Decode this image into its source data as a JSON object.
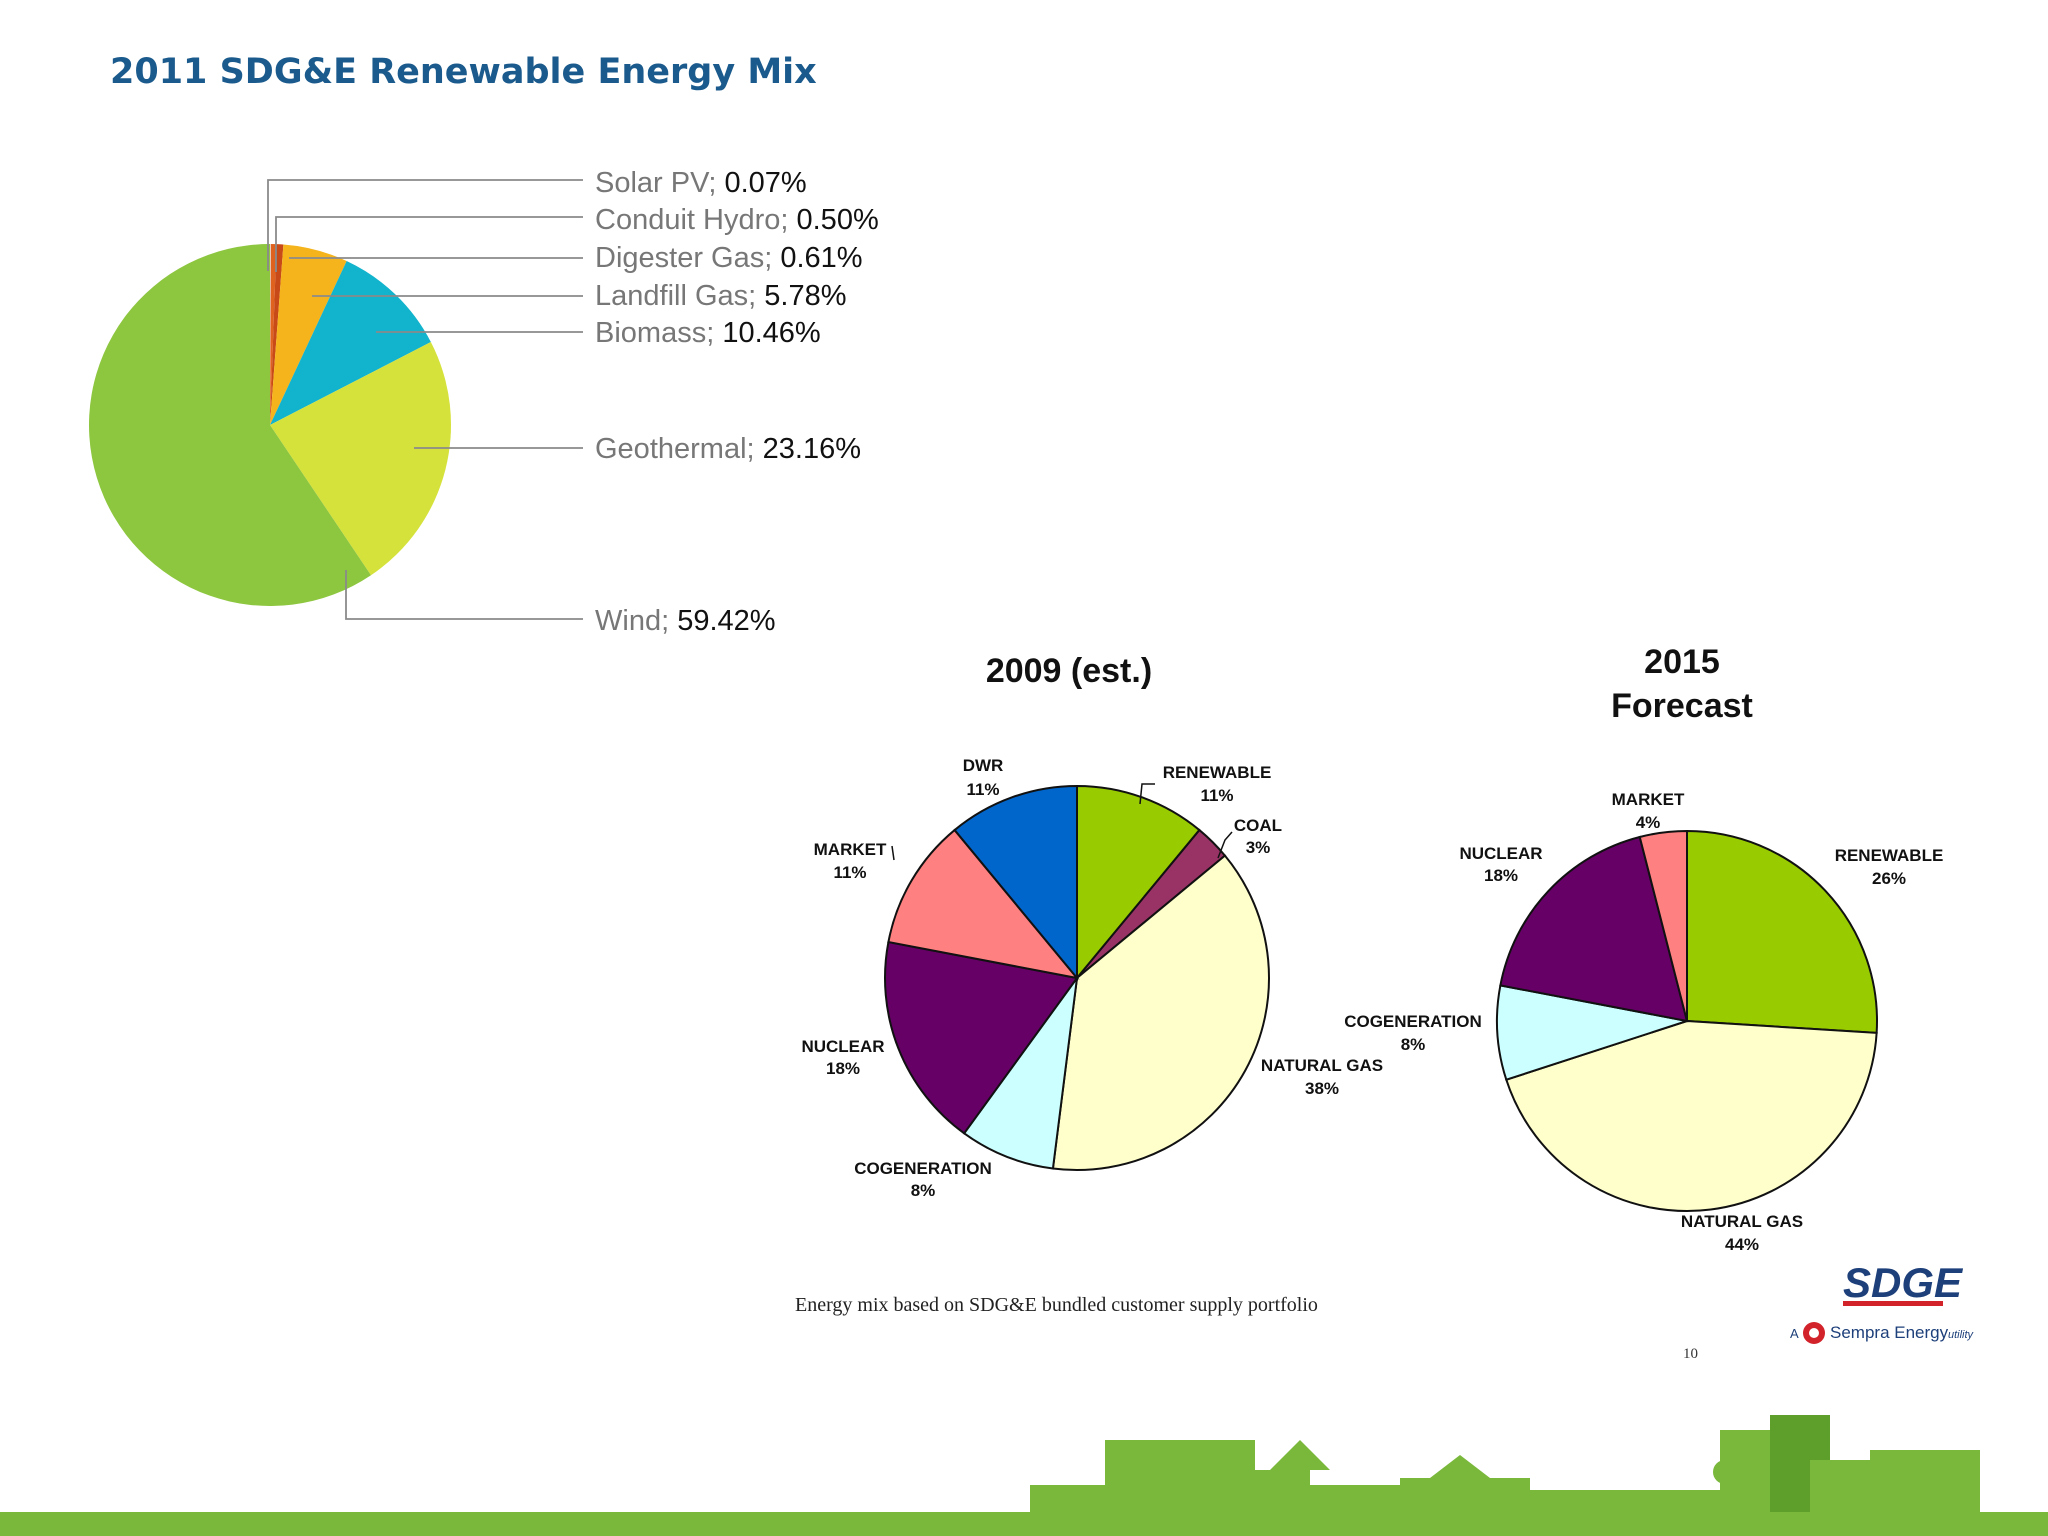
{
  "slide": {
    "title": "2011 SDG&E Renewable Energy Mix",
    "caption": "Energy mix based on SDG&E bundled customer supply portfolio",
    "page_number": "10",
    "logo_text": "SDGE",
    "logo_tagline_prefix": "A",
    "logo_tagline": "Sempra Energy",
    "logo_tagline_suffix": "utility"
  },
  "colors": {
    "title": "#1a5a8c",
    "footer": "#79b83b"
  },
  "chart_data": [
    {
      "type": "pie",
      "title": "2011 SDG&E Renewable Energy Mix",
      "labels": [
        "Solar PV",
        "Conduit Hydro",
        "Digester Gas",
        "Landfill Gas",
        "Biomass",
        "Geothermal",
        "Wind"
      ],
      "label_texts": [
        "Solar PV; ",
        "Conduit Hydro; ",
        "Digester Gas; ",
        "Landfill Gas; ",
        "Biomass; ",
        "Geothermal; ",
        "Wind; "
      ],
      "value_texts": [
        "0.07%",
        "0.50%",
        "0.61%",
        "5.78%",
        "10.46%",
        "23.16%",
        "59.42%"
      ],
      "values": [
        0.07,
        0.5,
        0.61,
        5.78,
        10.46,
        23.16,
        59.42
      ],
      "colors": [
        "#e8e8e8",
        "#e0621f",
        "#c84a18",
        "#f5b41b",
        "#12b3cc",
        "#d6e23c",
        "#8dc63f"
      ]
    },
    {
      "type": "pie",
      "title": "2009 (est.)",
      "labels": [
        "RENEWABLE",
        "COAL",
        "NATURAL GAS",
        "COGENERATION",
        "NUCLEAR",
        "MARKET",
        "DWR"
      ],
      "percent_labels": [
        "11%",
        "3%",
        "38%",
        "8%",
        "18%",
        "11%",
        "11%"
      ],
      "values": [
        11,
        3,
        38,
        8,
        18,
        11,
        11
      ],
      "colors": [
        "#99cc00",
        "#993366",
        "#ffffcc",
        "#ccffff",
        "#660066",
        "#ff8080",
        "#0066cc"
      ]
    },
    {
      "type": "pie",
      "title": [
        "2015",
        "Forecast"
      ],
      "labels": [
        "RENEWABLE",
        "NATURAL GAS",
        "COGENERATION",
        "NUCLEAR",
        "MARKET"
      ],
      "percent_labels": [
        "26%",
        "44%",
        "8%",
        "18%",
        "4%"
      ],
      "values": [
        26,
        44,
        8,
        18,
        4
      ],
      "colors": [
        "#99cc00",
        "#ffffcc",
        "#ccffff",
        "#660066",
        "#ff8080"
      ]
    }
  ]
}
